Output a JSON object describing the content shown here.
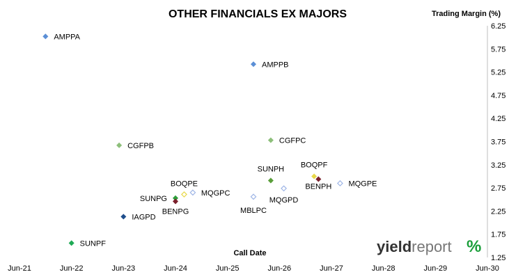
{
  "chart_data": {
    "type": "scatter",
    "title": "OTHER FINANCIALS EX MAJORS",
    "ylabel": "Trading Margin (%)",
    "xlabel": "Call Date",
    "x_ticks": [
      "Jun-21",
      "Jun-22",
      "Jun-23",
      "Jun-24",
      "Jun-25",
      "Jun-26",
      "Jun-27",
      "Jun-28",
      "Jun-29",
      "Jun-30"
    ],
    "x_range": [
      "2021-06",
      "2030-06"
    ],
    "y_ticks": [
      "1.25",
      "1.75",
      "2.25",
      "2.75",
      "3.25",
      "3.75",
      "4.25",
      "4.75",
      "5.25",
      "5.75",
      "6.25"
    ],
    "ylim": [
      1.25,
      6.25
    ],
    "points": [
      {
        "label": "AMPPA",
        "x": "2021-12",
        "y": 6.02,
        "color": "#5b8fd6",
        "fill": "solid"
      },
      {
        "label": "AMPPB",
        "x": "2025-12",
        "y": 5.42,
        "color": "#5b8fd6",
        "fill": "solid"
      },
      {
        "label": "CGFPB",
        "x": "2023-05",
        "y": 3.67,
        "color": "#8dbf7a",
        "fill": "solid"
      },
      {
        "label": "CGFPC",
        "x": "2026-04",
        "y": 3.78,
        "color": "#8dbf7a",
        "fill": "solid"
      },
      {
        "label": "SUNPH",
        "x": "2026-04",
        "y": 2.91,
        "color": "#5a9e3a",
        "fill": "solid"
      },
      {
        "label": "BOQPF",
        "x": "2027-02",
        "y": 3.0,
        "color": "#e8d84a",
        "fill": "solid"
      },
      {
        "label": "BENPH",
        "x": "2027-03",
        "y": 2.94,
        "color": "#7a1f2b",
        "fill": "solid"
      },
      {
        "label": "MQGPE",
        "x": "2027-08",
        "y": 2.85,
        "color": "#9fb6e6",
        "fill": "hollow"
      },
      {
        "label": "MQGPD",
        "x": "2026-07",
        "y": 2.74,
        "color": "#9fb6e6",
        "fill": "hollow"
      },
      {
        "label": "MBLPC",
        "x": "2025-12",
        "y": 2.56,
        "color": "#9fb6e6",
        "fill": "hollow"
      },
      {
        "label": "MQGPC",
        "x": "2024-10",
        "y": 2.65,
        "color": "#9fb6e6",
        "fill": "hollow"
      },
      {
        "label": "BOQPE",
        "x": "2024-08",
        "y": 2.61,
        "color": "#e8d84a",
        "fill": "hollow"
      },
      {
        "label": "SUNPG",
        "x": "2024-06",
        "y": 2.53,
        "color": "#2e9e3a",
        "fill": "solid"
      },
      {
        "label": "BENPG",
        "x": "2024-06",
        "y": 2.46,
        "color": "#7a1f2b",
        "fill": "solid"
      },
      {
        "label": "IAGPD",
        "x": "2023-06",
        "y": 2.13,
        "color": "#1f4e8c",
        "fill": "solid"
      },
      {
        "label": "SUNPF",
        "x": "2022-06",
        "y": 1.56,
        "color": "#1faa55",
        "fill": "solid"
      }
    ],
    "grid": false,
    "legend": "none"
  },
  "logo": {
    "bold": "yield",
    "light": "report",
    "symbol": "%"
  }
}
